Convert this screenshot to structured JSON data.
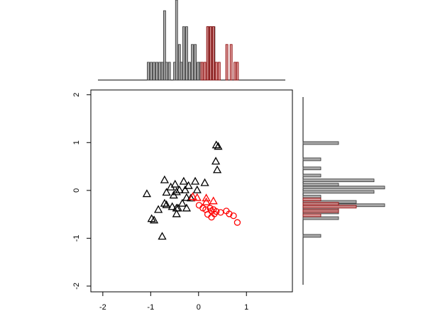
{
  "chart_data": {
    "type": "scatter",
    "xlim": [
      -2.25,
      1.96
    ],
    "ylim": [
      -2.12,
      2.1
    ],
    "xticks": [
      -2,
      -1,
      0,
      1
    ],
    "yticks": [
      -2,
      -1,
      0,
      1,
      2
    ],
    "series": [
      {
        "color": "#000000",
        "marker": "triangle",
        "x": [
          -1.08,
          -0.98,
          -0.93,
          -0.84,
          -0.76,
          -0.71,
          -0.71,
          -0.67,
          -0.67,
          -0.58,
          -0.55,
          -0.52,
          -0.49,
          -0.46,
          -0.46,
          -0.43,
          -0.46,
          -0.4,
          -0.34,
          -0.31,
          -0.28,
          -0.25,
          -0.25,
          -0.21,
          -0.16,
          -0.07,
          -0.03,
          0.13,
          0.36,
          0.39,
          0.37,
          0.41
        ],
        "y": [
          -0.07,
          -0.59,
          -0.62,
          -0.4,
          -0.96,
          0.22,
          -0.27,
          -0.3,
          -0.04,
          0.07,
          -0.34,
          -0.1,
          0.13,
          -0.03,
          -0.37,
          -0.37,
          -0.49,
          0.01,
          -0.27,
          0.19,
          0.01,
          -0.15,
          -0.37,
          0.1,
          -0.16,
          0.19,
          0.01,
          0.16,
          0.61,
          0.43,
          0.95,
          0.92
        ]
      },
      {
        "color": "#ff0000",
        "marker": "triangle",
        "x": [
          -0.12,
          -0.03,
          0.16,
          0.16,
          0.31
        ],
        "y": [
          -0.13,
          -0.15,
          -0.16,
          -0.24,
          -0.22
        ]
      },
      {
        "color": "#ff0000",
        "marker": "circle",
        "x": [
          0.01,
          0.09,
          0.15,
          0.24,
          0.27,
          0.27,
          0.31,
          0.33,
          0.37,
          0.46,
          0.58,
          0.64,
          0.73,
          0.81,
          0.19
        ],
        "y": [
          -0.31,
          -0.37,
          -0.4,
          -0.37,
          -0.43,
          -0.56,
          -0.4,
          -0.49,
          -0.44,
          -0.46,
          -0.43,
          -0.49,
          -0.53,
          -0.67,
          -0.5
        ]
      }
    ],
    "marginal_x": {
      "countlim": [
        0,
        4.5
      ],
      "series": [
        {
          "color": "#999999",
          "stroke": "#333333",
          "positions": [
            -1.05,
            -0.99,
            -0.93,
            -0.87,
            -0.81,
            -0.76,
            -0.71,
            -0.67,
            -0.61,
            -0.5,
            -0.46,
            -0.4,
            -0.36,
            -0.31,
            -0.25,
            -0.19,
            -0.13,
            -0.07,
            -0.01,
            0.04,
            0.2,
            0.26,
            0.32
          ],
          "counts": [
            1,
            1,
            1,
            1,
            1,
            1,
            3.9,
            1,
            1,
            1,
            4.5,
            2,
            1,
            3,
            3,
            1,
            2,
            2,
            1,
            1,
            3,
            3,
            3
          ]
        },
        {
          "color": "#d08080",
          "stroke": "#8b0000",
          "positions": [
            0.07,
            0.13,
            0.19,
            0.25,
            0.31,
            0.37,
            0.43,
            0.59,
            0.68,
            0.76,
            0.81
          ],
          "counts": [
            1,
            1,
            3,
            3,
            3,
            1,
            1,
            2,
            2,
            1,
            1
          ]
        }
      ]
    },
    "marginal_y": {
      "countlim": [
        0,
        4.6
      ],
      "series": [
        {
          "color": "#999999",
          "stroke": "#333333",
          "positions": [
            0.99,
            0.65,
            0.46,
            0.31,
            0.21,
            0.12,
            0.06,
            -0.03,
            -0.13,
            -0.24,
            -0.31,
            -0.4,
            -0.46,
            -0.58,
            -0.95
          ],
          "counts": [
            2,
            1,
            1,
            1,
            4,
            2,
            4.6,
            4,
            1,
            3,
            4.6,
            2,
            2,
            2,
            1
          ]
        },
        {
          "color": "#d08080",
          "stroke": "#8b0000",
          "positions": [
            -0.19,
            -0.28,
            -0.34,
            -0.43,
            -0.52
          ],
          "counts": [
            1,
            2,
            3,
            2,
            1
          ]
        }
      ]
    }
  }
}
